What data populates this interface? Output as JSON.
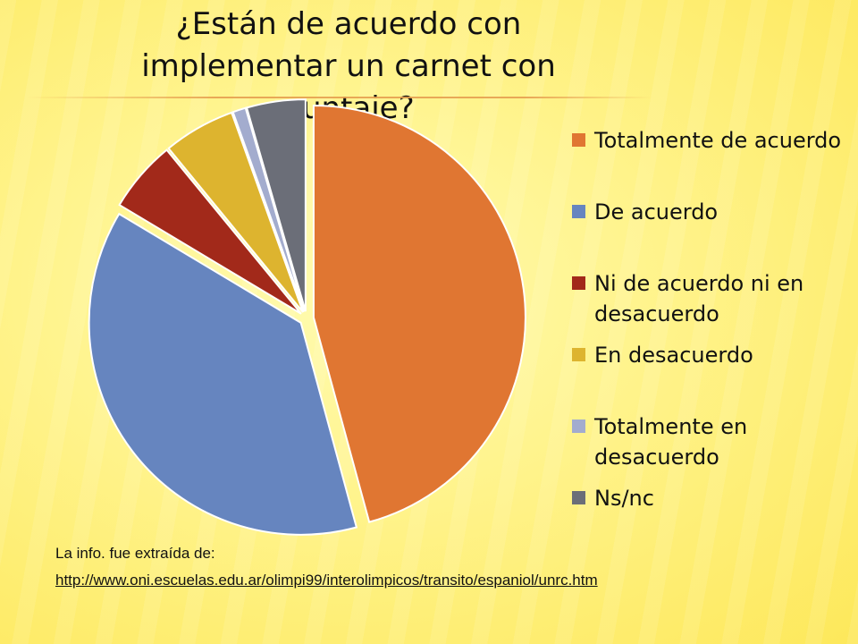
{
  "title": "¿Están de acuerdo con implementar un carnet con puntaje?",
  "chart_data": {
    "type": "pie",
    "categories": [
      "Totalmente de acuerdo",
      "De acuerdo",
      "Ni de acuerdo ni en desacuerdo",
      "En desacuerdo",
      "Totalmente en desacuerdo",
      "Ns/nc"
    ],
    "values": [
      46,
      38,
      5.5,
      5.5,
      1,
      4.5
    ],
    "colors": [
      "#E07632",
      "#6685BF",
      "#A2291A",
      "#DDB42F",
      "#A3ACCE",
      "#6B6E78"
    ],
    "legend_position": "right"
  },
  "legend": {
    "items": [
      {
        "label": "Totalmente de acuerdo",
        "color": "#E07632"
      },
      {
        "label": "De acuerdo",
        "color": "#6685BF"
      },
      {
        "label": "Ni de acuerdo ni en desacuerdo",
        "color": "#A2291A"
      },
      {
        "label": "En desacuerdo",
        "color": "#DDB42F"
      },
      {
        "label": "Totalmente en desacuerdo",
        "color": "#A3ACCE"
      },
      {
        "label": "Ns/nc",
        "color": "#6B6E78"
      }
    ]
  },
  "source": {
    "label": "La info. fue extraída de:",
    "link": "http://www.oni.escuelas.edu.ar/olimpi99/interolimpicos/transito/espaniol/unrc.htm"
  }
}
